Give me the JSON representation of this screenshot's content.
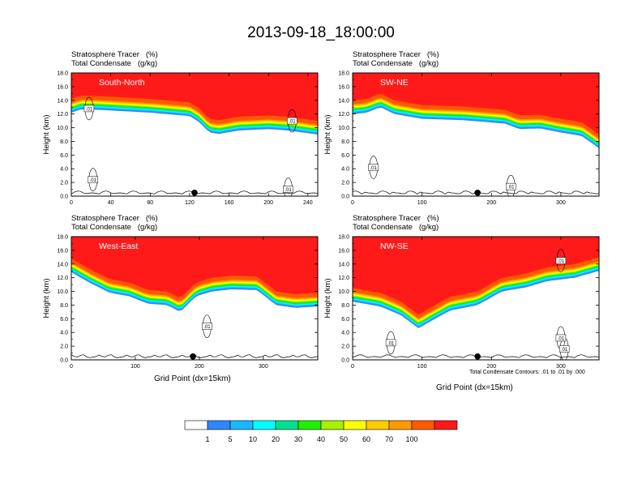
{
  "title": "2013-09-18_18:00:00",
  "headers": {
    "tracer_label": "Stratosphere Tracer",
    "tracer_unit": "(%)",
    "condensate_label": "Total Condensate",
    "condensate_unit": "(g/kg)"
  },
  "y_axis_label": "Height (km)",
  "x_axis_label": "Grid Point (dx=15km)",
  "contour_note": "Total Condensate Contours: .01 to .01 by .000",
  "colorbar": {
    "labels": [
      "1",
      "5",
      "10",
      "20",
      "30",
      "40",
      "50",
      "60",
      "70",
      "100"
    ],
    "colors": [
      "#ffffff",
      "#2f86ff",
      "#17b8ff",
      "#00ffff",
      "#00e08f",
      "#20f000",
      "#a8f000",
      "#ffff00",
      "#ffcc00",
      "#ff9900",
      "#ff5a00",
      "#ff1a1a"
    ]
  },
  "chart_data": [
    {
      "type": "heatmap",
      "name": "South-North",
      "title": "South-North",
      "xlim": [
        0,
        250
      ],
      "x_ticks": [
        0,
        40,
        80,
        120,
        160,
        200,
        240
      ],
      "ylim": [
        0,
        18
      ],
      "y_ticks": [
        "0.0",
        "2.0",
        "4.0",
        "6.0",
        "8.0",
        "10.0",
        "12.0",
        "14.0",
        "16.0",
        "18.0"
      ],
      "marker_x": 125,
      "tracer_base_km": [
        [
          0,
          14.2
        ],
        [
          10,
          14.7
        ],
        [
          30,
          14.6
        ],
        [
          80,
          14.2
        ],
        [
          120,
          13.7
        ],
        [
          130,
          12.8
        ],
        [
          140,
          11.3
        ],
        [
          150,
          11.1
        ],
        [
          170,
          11.6
        ],
        [
          200,
          11.8
        ],
        [
          220,
          11.6
        ],
        [
          250,
          11.0
        ]
      ],
      "contour_labels": [
        {
          "x": 18,
          "y": 12.8,
          "text": ".01"
        },
        {
          "x": 22,
          "y": 2.4,
          "text": ".01"
        },
        {
          "x": 224,
          "y": 11.0,
          "text": ".01"
        },
        {
          "x": 220,
          "y": 1.0,
          "text": ".01"
        }
      ]
    },
    {
      "type": "heatmap",
      "name": "SW-NE",
      "title": "SW-NE",
      "xlim": [
        0,
        355
      ],
      "x_ticks": [
        0,
        100,
        200,
        300
      ],
      "ylim": [
        0,
        18
      ],
      "y_ticks": [
        "0.0",
        "2.0",
        "4.0",
        "6.0",
        "8.0",
        "10.0",
        "12.0",
        "14.0",
        "16.0",
        "18.0"
      ],
      "marker_x": 180,
      "tracer_base_km": [
        [
          0,
          14.0
        ],
        [
          20,
          14.2
        ],
        [
          40,
          15.0
        ],
        [
          60,
          14.0
        ],
        [
          100,
          13.3
        ],
        [
          160,
          13.1
        ],
        [
          220,
          12.6
        ],
        [
          240,
          11.8
        ],
        [
          270,
          11.9
        ],
        [
          300,
          11.3
        ],
        [
          330,
          10.8
        ],
        [
          355,
          9.0
        ]
      ],
      "contour_labels": [
        {
          "x": 30,
          "y": 4.2,
          "text": ".01"
        },
        {
          "x": 228,
          "y": 1.4,
          "text": ".01"
        }
      ]
    },
    {
      "type": "heatmap",
      "name": "West-East",
      "title": "West-East",
      "xlim": [
        0,
        385
      ],
      "x_ticks": [
        0,
        100,
        200,
        300
      ],
      "ylim": [
        0,
        18
      ],
      "y_ticks": [
        "0.0",
        "2.0",
        "4.0",
        "6.0",
        "8.0",
        "10.0",
        "12.0",
        "14.0",
        "16.0",
        "18.0"
      ],
      "marker_x": 190,
      "tracer_base_km": [
        [
          0,
          14.8
        ],
        [
          30,
          13.2
        ],
        [
          60,
          11.8
        ],
        [
          90,
          11.3
        ],
        [
          120,
          10.2
        ],
        [
          150,
          10.0
        ],
        [
          170,
          9.0
        ],
        [
          195,
          11.3
        ],
        [
          220,
          12.0
        ],
        [
          250,
          12.3
        ],
        [
          290,
          12.2
        ],
        [
          320,
          10.0
        ],
        [
          350,
          9.6
        ],
        [
          385,
          9.8
        ]
      ],
      "contour_labels": [
        {
          "x": 212,
          "y": 4.9,
          "text": ".01"
        }
      ]
    },
    {
      "type": "heatmap",
      "name": "NW-SE",
      "title": "NW-SE",
      "xlim": [
        0,
        355
      ],
      "x_ticks": [
        0,
        100,
        200,
        300
      ],
      "ylim": [
        0,
        18
      ],
      "y_ticks": [
        "0.0",
        "2.0",
        "4.0",
        "6.0",
        "8.0",
        "10.0",
        "12.0",
        "14.0",
        "16.0",
        "18.0"
      ],
      "marker_x": 180,
      "tracer_base_km": [
        [
          0,
          10.5
        ],
        [
          40,
          9.8
        ],
        [
          70,
          8.5
        ],
        [
          95,
          6.6
        ],
        [
          110,
          7.5
        ],
        [
          140,
          9.2
        ],
        [
          180,
          10.0
        ],
        [
          215,
          12.0
        ],
        [
          250,
          12.6
        ],
        [
          280,
          13.5
        ],
        [
          320,
          14.0
        ],
        [
          355,
          15.0
        ]
      ],
      "contour_labels": [
        {
          "x": 55,
          "y": 2.5,
          "text": ".01"
        },
        {
          "x": 300,
          "y": 14.5,
          "text": ".01"
        },
        {
          "x": 300,
          "y": 3.2,
          "text": ".01"
        },
        {
          "x": 305,
          "y": 1.6,
          "text": ".01"
        }
      ]
    }
  ]
}
